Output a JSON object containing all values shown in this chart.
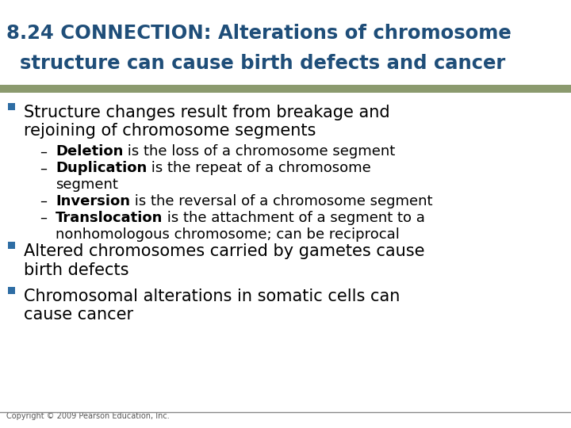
{
  "title_line1": "8.24 CONNECTION: Alterations of chromosome",
  "title_line2": "  structure can cause birth defects and cancer",
  "title_color": "#1F4E79",
  "title_fontsize": 17.5,
  "separator_color": "#8B9A6E",
  "separator_color2": "#A0A898",
  "background_color": "#FFFFFF",
  "bullet_color": "#2E6DA4",
  "bullet_text_color": "#000000",
  "sub_bullet_text_color": "#000000",
  "copyright": "Copyright © 2009 Pearson Education, Inc.",
  "copyright_fontsize": 7,
  "title_bg_color": "#FFFFFF",
  "content_fontsize": 15,
  "sub_fontsize": 13,
  "bullets": [
    {
      "text": "Structure changes result from breakage and\nrejoining of chromosome segments",
      "subbullets": [
        {
          "bold_part": "Deletion",
          "normal_part": " is the loss of a chromosome segment"
        },
        {
          "bold_part": "Duplication",
          "normal_part": " is the repeat of a chromosome\n    segment"
        },
        {
          "bold_part": "Inversion",
          "normal_part": " is the reversal of a chromosome segment"
        },
        {
          "bold_part": "Translocation",
          "normal_part": " is the attachment of a segment to a\n    nonhomologous chromosome; can be reciprocal"
        }
      ]
    },
    {
      "text": "Altered chromosomes carried by gametes cause\nbirth defects",
      "subbullets": []
    },
    {
      "text": "Chromosomal alterations in somatic cells can\ncause cancer",
      "subbullets": []
    }
  ]
}
